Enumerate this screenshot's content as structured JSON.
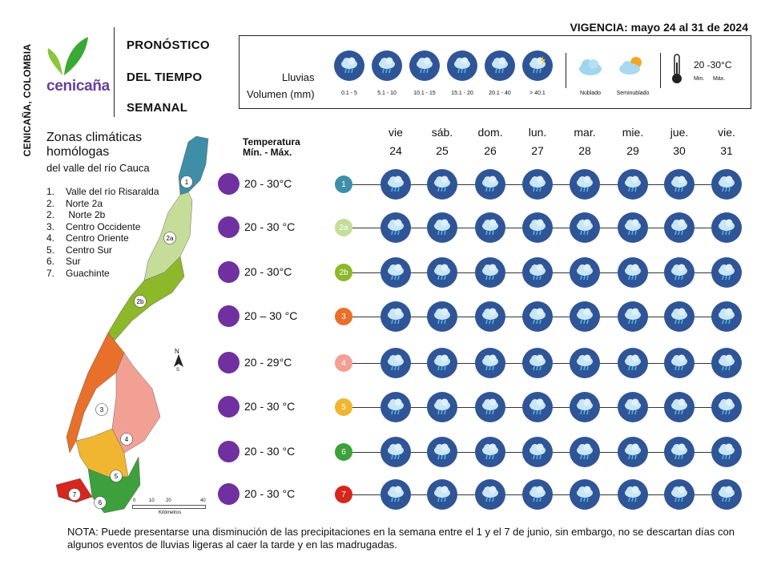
{
  "side_label": "CENICAÑA, COLOMBIA",
  "brand": "cenicaña",
  "title_lines": [
    "PRONÓSTICO",
    "DEL TIEMPO",
    "SEMANAL"
  ],
  "vigencia": "VIGENCIA: mayo 24 al 31 de 2024",
  "legend": {
    "lluvias_label": "Lluvias",
    "volumen_label": "Volumen (mm)",
    "rain_ranges": [
      "0.1 - 5",
      "5.1 - 10",
      "10.1 - 15",
      "15.1 - 20",
      "20.1 - 40",
      "> 40.1"
    ],
    "nublado": "Nublado",
    "seminublado": "Seminublado",
    "temp_range": "20 -30°C",
    "min_label": "Min.",
    "max_label": "Máx."
  },
  "zones_title_1": "Zonas climáticas",
  "zones_title_2": "homólogas",
  "zones_subtitle": "del valle del río Cauca",
  "zone_list": [
    {
      "n": "1.",
      "name": "Valle del río Risaralda"
    },
    {
      "n": "2.",
      "name": "Norte 2a"
    },
    {
      "n": "2.",
      "name": " Norte 2b"
    },
    {
      "n": "3.",
      "name": "Centro Occidente"
    },
    {
      "n": "4.",
      "name": "Centro Oriente"
    },
    {
      "n": "5.",
      "name": "Centro Sur"
    },
    {
      "n": "6.",
      "name": "Sur"
    },
    {
      "n": "7.",
      "name": "Guachinte"
    }
  ],
  "map": {
    "compass": "N",
    "compass_s": "S",
    "scale_ticks": [
      "0",
      "10",
      "20",
      "40"
    ],
    "scale_label": "Kilómetros",
    "region_labels": [
      "1",
      "2a",
      "2b",
      "3",
      "4",
      "5",
      "6",
      "7"
    ]
  },
  "temp_header_1": "Temperatura",
  "temp_header_2": "Mín. -  Máx.",
  "days": [
    {
      "name": "vie",
      "num": "24"
    },
    {
      "name": "sáb.",
      "num": "25"
    },
    {
      "name": "dom.",
      "num": "26"
    },
    {
      "name": "lun.",
      "num": "27"
    },
    {
      "name": "mar.",
      "num": "28"
    },
    {
      "name": "mie.",
      "num": "29"
    },
    {
      "name": "jue.",
      "num": "30"
    },
    {
      "name": "vie.",
      "num": "31"
    }
  ],
  "zones": [
    {
      "label": "1",
      "color": "#3f8ea8",
      "temp": "20 - 30°C"
    },
    {
      "label": "2a",
      "color": "#c6dd9a",
      "temp": "20 - 30 °C"
    },
    {
      "label": "2b",
      "color": "#8cb82a",
      "temp": "20 - 30°C"
    },
    {
      "label": "3",
      "color": "#e8702a",
      "temp": "20 – 30 °C"
    },
    {
      "label": "4",
      "color": "#f2a093",
      "temp": "20 - 29°C"
    },
    {
      "label": "5",
      "color": "#f0b631",
      "temp": "20 - 30 °C"
    },
    {
      "label": "6",
      "color": "#3ea03c",
      "temp": "20 - 30 °C"
    },
    {
      "label": "7",
      "color": "#d7261e",
      "temp": "20 - 30 °C"
    }
  ],
  "colors": {
    "icon_bg": "#2f5597",
    "temp_dot": "#7030a0",
    "rain_drop": "#4fb3e8"
  },
  "note": "NOTA: Puede presentarse una disminución de las precipitaciones en la semana entre el 1 y el 7 de junio, sin embargo, no se descartan días con algunos eventos de lluvias ligeras al caer la tarde y en las madrugadas."
}
